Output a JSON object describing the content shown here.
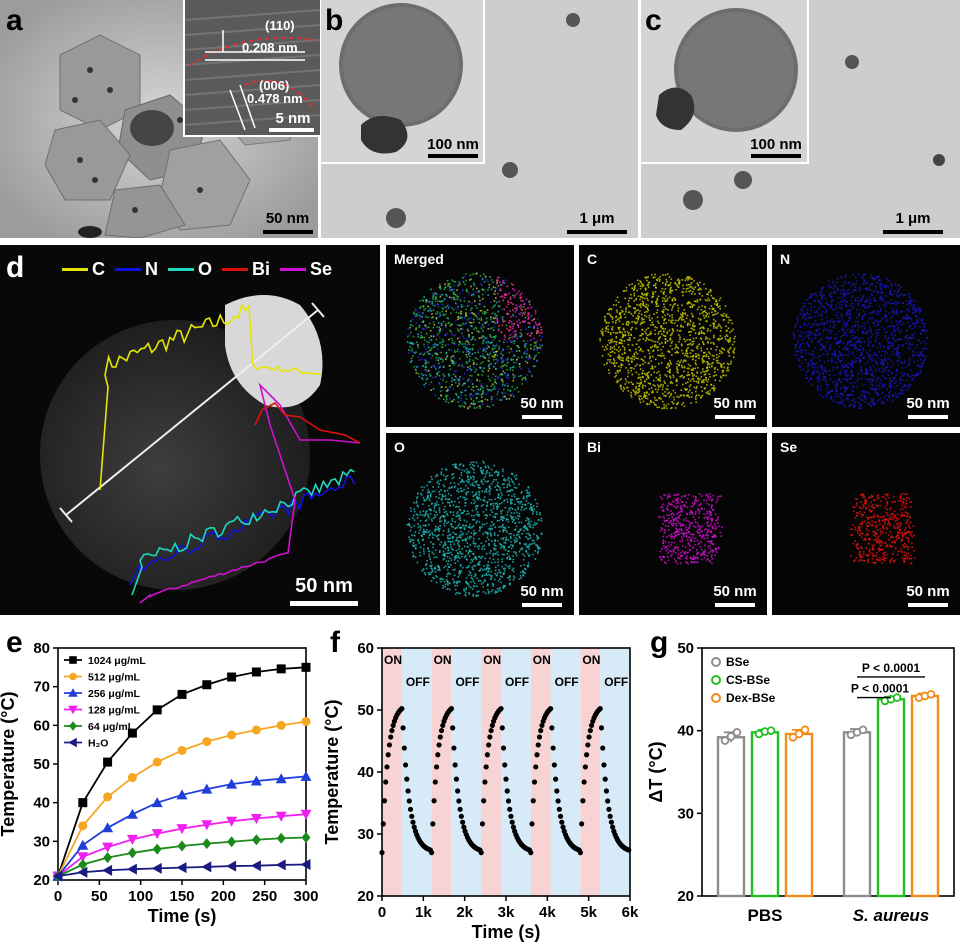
{
  "panels": {
    "a": {
      "label": "a",
      "scale": "50 nm",
      "inset_scale": "5 nm",
      "annotations": [
        "(110)",
        "0.208 nm",
        "(006)",
        "0.478 nm"
      ]
    },
    "b": {
      "label": "b",
      "inset_scale": "100 nm",
      "scale": "1 μm"
    },
    "c": {
      "label": "c",
      "inset_scale": "100 nm",
      "scale": "1 μm"
    },
    "d": {
      "label": "d",
      "legend": [
        {
          "name": "C",
          "color": "#e6e600"
        },
        {
          "name": "N",
          "color": "#1010e0"
        },
        {
          "name": "O",
          "color": "#20d8c0"
        },
        {
          "name": "Bi",
          "color": "#e01010"
        },
        {
          "name": "Se",
          "color": "#d010d0"
        }
      ],
      "scale": "50 nm",
      "maps": [
        {
          "title": "Merged",
          "scale": "50 nm",
          "color": "#30c060"
        },
        {
          "title": "C",
          "scale": "50 nm",
          "color": "#c8c800"
        },
        {
          "title": "N",
          "scale": "50 nm",
          "color": "#1818c8"
        },
        {
          "title": "O",
          "scale": "50 nm",
          "color": "#20b8b8"
        },
        {
          "title": "Bi",
          "scale": "50 nm",
          "color": "#d010d0"
        },
        {
          "title": "Se",
          "scale": "50 nm",
          "color": "#e01010"
        }
      ]
    }
  },
  "chart_data": [
    {
      "panel": "e",
      "type": "line",
      "xlabel": "Time (s)",
      "ylabel": "Temperature (°C)",
      "xlim": [
        0,
        300
      ],
      "ylim": [
        20,
        80
      ],
      "xticks": [
        0,
        50,
        100,
        150,
        200,
        250,
        300
      ],
      "yticks": [
        20,
        30,
        40,
        50,
        60,
        70,
        80
      ],
      "x": [
        0,
        30,
        60,
        90,
        120,
        150,
        180,
        210,
        240,
        270,
        300
      ],
      "series": [
        {
          "name": "1024 μg/mL",
          "color": "#000000",
          "marker": "square",
          "values": [
            21,
            40,
            50.5,
            58,
            64,
            68,
            70.5,
            72.5,
            73.8,
            74.6,
            75
          ]
        },
        {
          "name": "512 μg/mL",
          "color": "#f5a623",
          "marker": "circle",
          "values": [
            21,
            34,
            41.5,
            46.5,
            50.5,
            53.5,
            55.8,
            57.5,
            58.8,
            60,
            61
          ]
        },
        {
          "name": "256 μg/mL",
          "color": "#1f3fd8",
          "marker": "triangle-up",
          "values": [
            21,
            29,
            33.5,
            37,
            40,
            42,
            43.5,
            44.8,
            45.6,
            46.2,
            46.8
          ]
        },
        {
          "name": "128 μg/mL",
          "color": "#f020f0",
          "marker": "triangle-down",
          "values": [
            21,
            26,
            28.5,
            30.5,
            32,
            33.3,
            34.3,
            35.2,
            35.9,
            36.5,
            37
          ]
        },
        {
          "name": "64 μg/mL",
          "color": "#1a8a1a",
          "marker": "diamond",
          "values": [
            21,
            24,
            25.8,
            27,
            28,
            28.8,
            29.4,
            29.9,
            30.4,
            30.8,
            31
          ]
        },
        {
          "name": "H₂O",
          "color": "#1a1a80",
          "marker": "triangle-left",
          "values": [
            21,
            22,
            22.5,
            22.8,
            23,
            23.2,
            23.4,
            23.6,
            23.7,
            23.9,
            24
          ]
        }
      ]
    },
    {
      "panel": "f",
      "type": "scatter",
      "xlabel": "Time (s)",
      "ylabel": "Temperature (°C)",
      "xlim": [
        0,
        6000
      ],
      "ylim": [
        20,
        60
      ],
      "xticks": [
        0,
        1000,
        2000,
        3000,
        4000,
        5000,
        6000
      ],
      "xticklabels": [
        "0",
        "1k",
        "2k",
        "3k",
        "4k",
        "5k",
        "6k"
      ],
      "yticks": [
        20,
        30,
        40,
        50,
        60
      ],
      "cycle_period_s": 1200,
      "on_duration_s": 480,
      "n_cycles": 5,
      "t_base": 27,
      "t_peak": 51,
      "state_labels": {
        "on": "ON",
        "off": "OFF"
      },
      "on_color": "#f7d3d3",
      "off_color": "#d6ebf7"
    },
    {
      "panel": "g",
      "type": "bar",
      "ylabel": "ΔT (°C)",
      "ylim": [
        20,
        50
      ],
      "yticks": [
        20,
        30,
        40,
        50
      ],
      "categories": [
        "PBS",
        "S. aureus"
      ],
      "series": [
        {
          "name": "BSe",
          "color": "#8c8c8c",
          "values": [
            39.2,
            39.8
          ],
          "errors": [
            0.6,
            0.4
          ],
          "points": [
            [
              38.8,
              39.3,
              39.8
            ],
            [
              39.5,
              39.8,
              40.1
            ]
          ]
        },
        {
          "name": "CS-BSe",
          "color": "#22c022",
          "values": [
            39.8,
            43.8
          ],
          "errors": [
            0.3,
            0.3
          ],
          "points": [
            [
              39.6,
              39.9,
              40.0
            ],
            [
              43.6,
              43.8,
              44.0
            ]
          ]
        },
        {
          "name": "Dex-BSe",
          "color": "#f08c1a",
          "values": [
            39.6,
            44.2
          ],
          "errors": [
            0.5,
            0.3
          ],
          "points": [
            [
              39.2,
              39.6,
              40.1
            ],
            [
              44.0,
              44.2,
              44.4
            ]
          ]
        }
      ],
      "significance": [
        "P < 0.0001",
        "P < 0.0001"
      ]
    }
  ],
  "panel_letters": {
    "e": "e",
    "f": "f",
    "g": "g"
  }
}
